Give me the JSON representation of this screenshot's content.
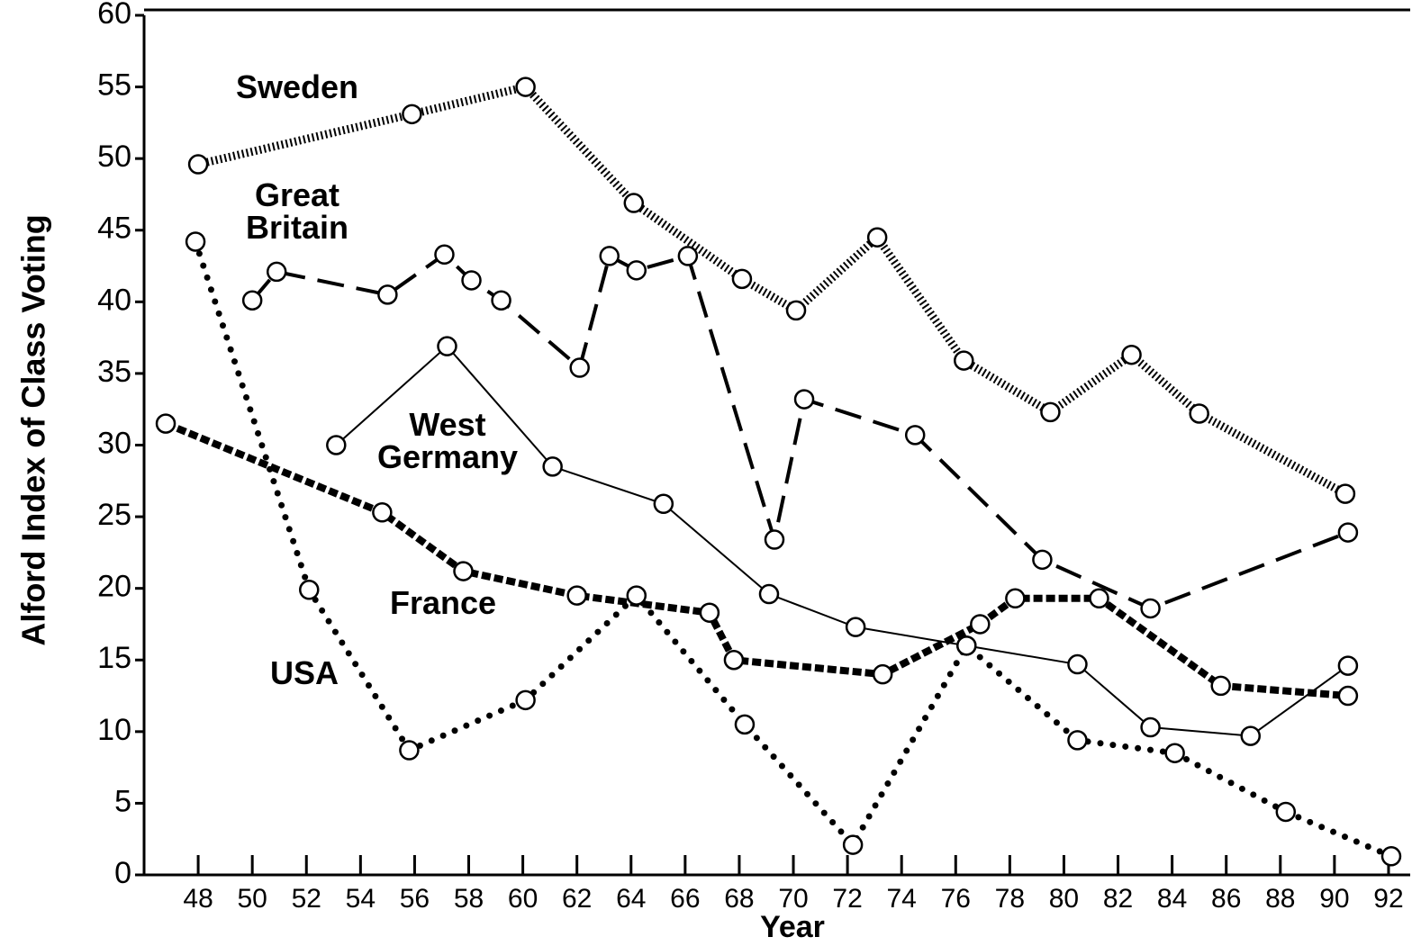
{
  "chart_data": {
    "type": "line",
    "xlabel": "Year",
    "ylabel": "Alford Index of Class Voting",
    "xlim": [
      46,
      92.8
    ],
    "ylim": [
      0,
      60
    ],
    "xticks": [
      48,
      50,
      52,
      54,
      56,
      58,
      60,
      62,
      64,
      66,
      68,
      70,
      72,
      74,
      76,
      78,
      80,
      82,
      84,
      86,
      88,
      90,
      92
    ],
    "yticks": [
      0,
      5,
      10,
      15,
      20,
      25,
      30,
      35,
      40,
      45,
      50,
      55,
      60
    ],
    "series": [
      {
        "name": "Sweden",
        "color": "#000000",
        "line_style": "hatched",
        "x": [
          48,
          55.9,
          60.1,
          64.1,
          68.1,
          70.1,
          73.1,
          76.3,
          79.5,
          82.5,
          85.0,
          90.4
        ],
        "values": [
          49.6,
          53.1,
          55.0,
          46.9,
          41.6,
          39.4,
          44.5,
          35.9,
          32.3,
          36.3,
          32.2,
          26.6
        ]
      },
      {
        "name": "Great Britain",
        "color": "#000000",
        "line_style": "dashed",
        "x": [
          50,
          50.9,
          55.0,
          57.1,
          58.1,
          59.2,
          62.1,
          63.2,
          64.2,
          66.1,
          69.3,
          70.4,
          74.5,
          79.2,
          83.2,
          90.5
        ],
        "values": [
          40.1,
          42.1,
          40.5,
          43.3,
          41.5,
          40.1,
          35.4,
          43.2,
          42.2,
          43.2,
          23.4,
          33.2,
          30.7,
          22.0,
          18.6,
          23.9
        ]
      },
      {
        "name": "West Germany",
        "color": "#000000",
        "line_style": "solid",
        "x": [
          53.1,
          57.2,
          61.1,
          65.2,
          69.1,
          72.3,
          76.4,
          80.5,
          83.2,
          86.9,
          90.5
        ],
        "values": [
          30.0,
          36.9,
          28.5,
          25.9,
          19.6,
          17.3,
          16.0,
          14.7,
          10.3,
          9.7,
          14.6
        ]
      },
      {
        "name": "France",
        "color": "#000000",
        "line_style": "thick-dashed",
        "x": [
          46.8,
          54.8,
          57.8,
          62.0,
          66.9,
          67.8,
          73.3,
          76.9,
          78.2,
          81.3,
          85.8,
          90.5
        ],
        "values": [
          31.5,
          25.3,
          21.2,
          19.5,
          18.3,
          15.0,
          14.0,
          17.5,
          19.3,
          19.3,
          13.2,
          12.5
        ]
      },
      {
        "name": "USA",
        "color": "#000000",
        "line_style": "dotted",
        "x": [
          47.9,
          52.1,
          55.8,
          60.1,
          64.2,
          68.2,
          72.2,
          76.4,
          80.5,
          84.1,
          88.2,
          92.1
        ],
        "values": [
          44.2,
          19.9,
          8.7,
          12.2,
          19.5,
          10.5,
          2.1,
          16.0,
          9.4,
          8.5,
          4.4,
          1.3
        ]
      }
    ]
  }
}
